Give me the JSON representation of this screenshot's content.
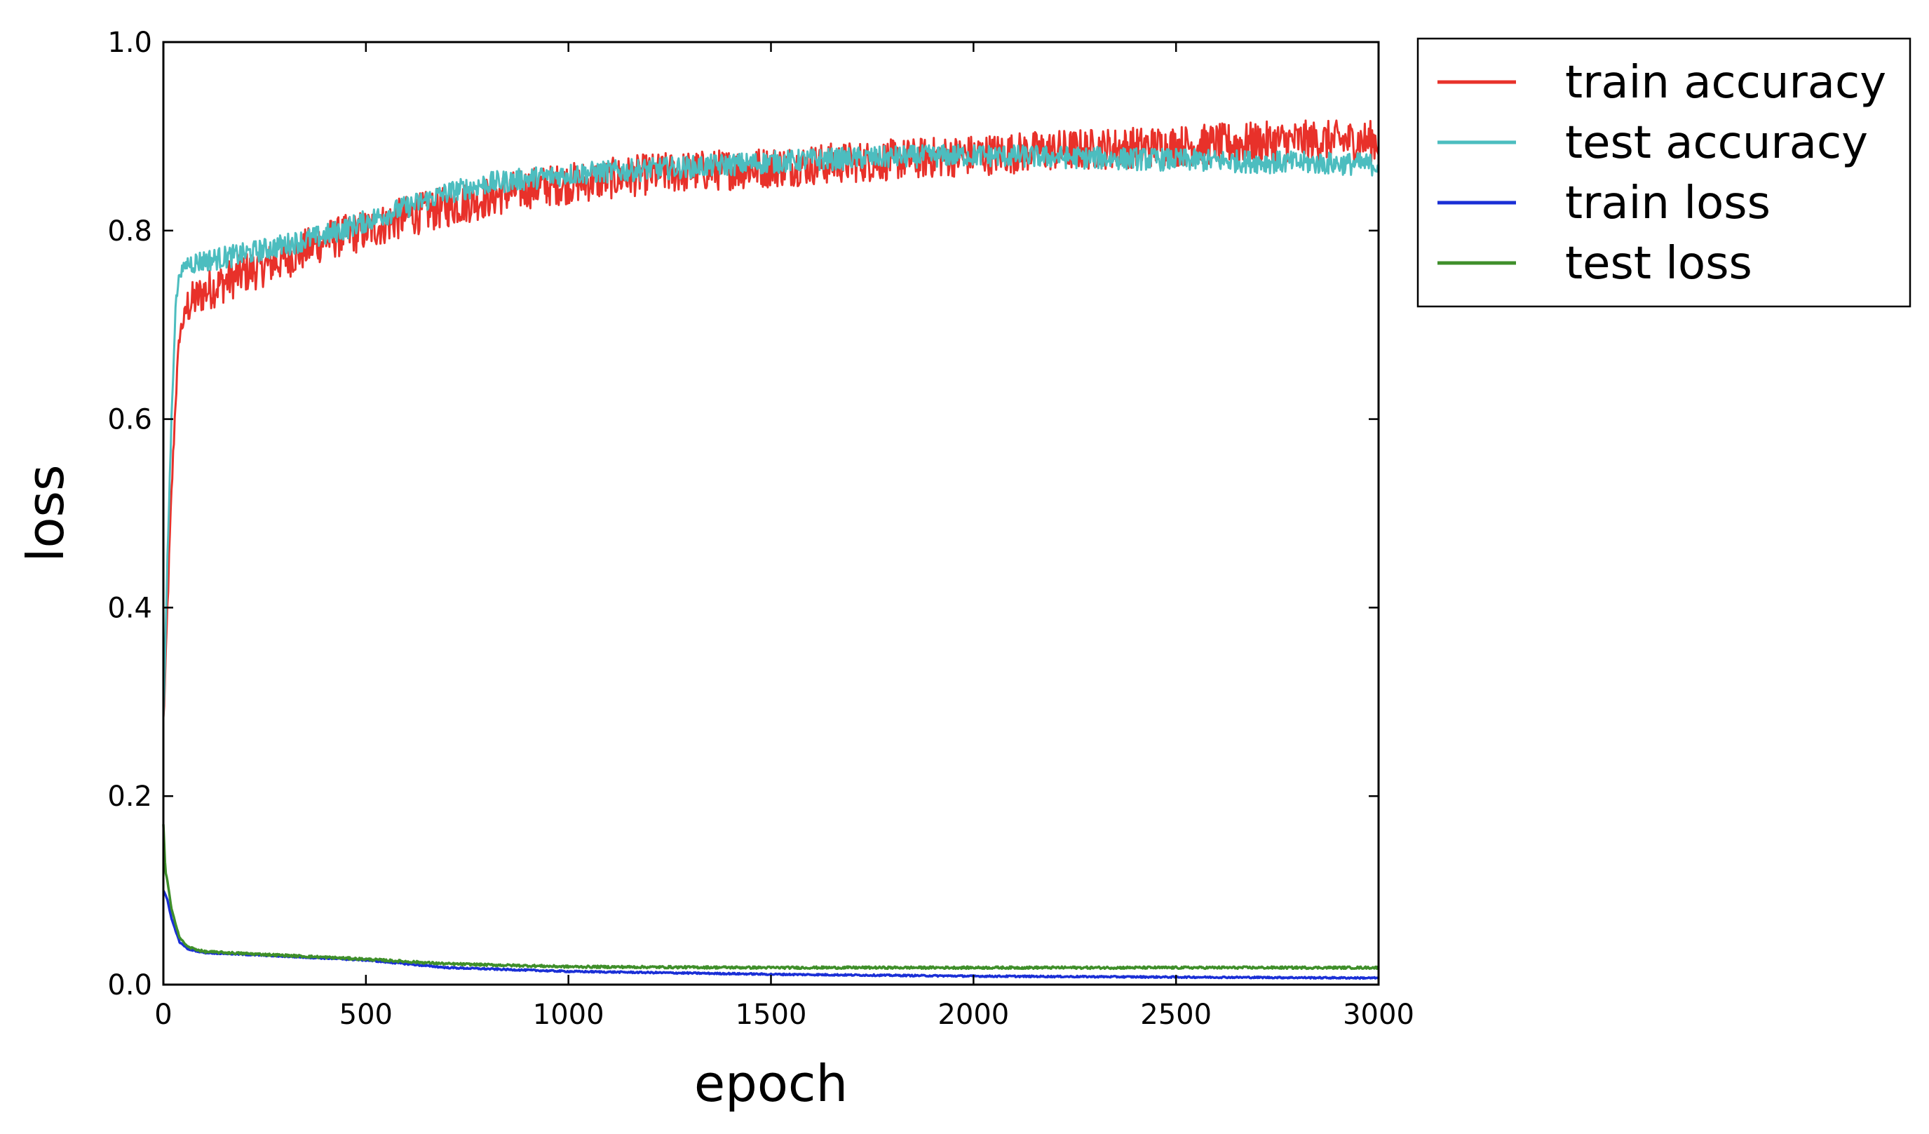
{
  "chart_data": {
    "type": "line",
    "title": "",
    "xlabel": "epoch",
    "ylabel": "loss",
    "xlim": [
      0,
      3000
    ],
    "ylim": [
      0.0,
      1.0
    ],
    "xticks": [
      "0",
      "500",
      "1000",
      "1500",
      "2000",
      "2500",
      "3000"
    ],
    "yticks": [
      "0.0",
      "0.2",
      "0.4",
      "0.6",
      "0.8",
      "1.0"
    ],
    "grid": false,
    "legend_position": "outside-top-right",
    "series": [
      {
        "name": "train accuracy",
        "color": "#e8312a",
        "noise": 0.022,
        "x": [
          0,
          5,
          10,
          20,
          30,
          40,
          60,
          100,
          200,
          300,
          400,
          500,
          600,
          700,
          800,
          900,
          1000,
          1200,
          1400,
          1600,
          1800,
          2000,
          2200,
          2500,
          2800,
          3000
        ],
        "y": [
          0.28,
          0.33,
          0.4,
          0.52,
          0.62,
          0.69,
          0.72,
          0.735,
          0.755,
          0.77,
          0.79,
          0.8,
          0.815,
          0.825,
          0.835,
          0.845,
          0.85,
          0.86,
          0.865,
          0.87,
          0.875,
          0.88,
          0.885,
          0.89,
          0.895,
          0.895
        ]
      },
      {
        "name": "test accuracy",
        "color": "#4cbdbf",
        "noise": 0.012,
        "x": [
          0,
          5,
          10,
          20,
          30,
          40,
          60,
          100,
          200,
          300,
          400,
          500,
          600,
          700,
          800,
          900,
          1000,
          1200,
          1400,
          1600,
          1800,
          2000,
          2200,
          2500,
          2800,
          3000
        ],
        "y": [
          0.28,
          0.36,
          0.45,
          0.6,
          0.72,
          0.755,
          0.765,
          0.768,
          0.775,
          0.785,
          0.795,
          0.81,
          0.825,
          0.84,
          0.85,
          0.855,
          0.86,
          0.865,
          0.87,
          0.875,
          0.878,
          0.88,
          0.878,
          0.875,
          0.872,
          0.87
        ]
      },
      {
        "name": "train loss",
        "color": "#1a2fd6",
        "noise": 0.0008,
        "x": [
          0,
          5,
          10,
          20,
          40,
          60,
          100,
          200,
          300,
          500,
          700,
          1000,
          1500,
          2000,
          2500,
          3000
        ],
        "y": [
          0.1,
          0.095,
          0.09,
          0.07,
          0.045,
          0.038,
          0.034,
          0.032,
          0.03,
          0.026,
          0.018,
          0.014,
          0.011,
          0.009,
          0.008,
          0.007
        ]
      },
      {
        "name": "test loss",
        "color": "#3f8f2a",
        "noise": 0.0012,
        "x": [
          0,
          5,
          10,
          20,
          40,
          60,
          100,
          200,
          300,
          500,
          700,
          1000,
          1500,
          2000,
          2500,
          3000
        ],
        "y": [
          0.17,
          0.12,
          0.11,
          0.08,
          0.05,
          0.04,
          0.035,
          0.033,
          0.031,
          0.027,
          0.022,
          0.019,
          0.018,
          0.018,
          0.018,
          0.018
        ]
      }
    ]
  }
}
